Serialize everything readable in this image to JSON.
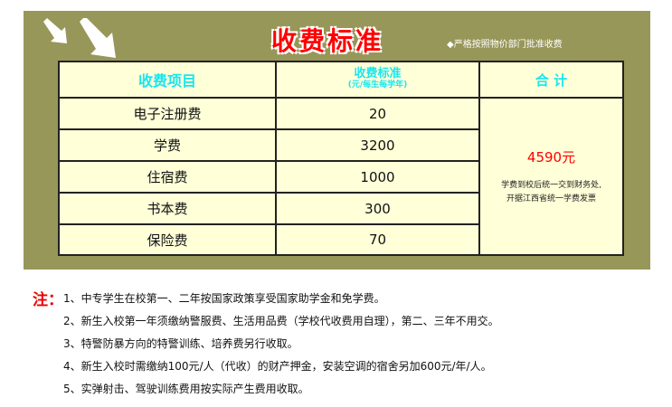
{
  "header": {
    "title": "收费标准",
    "note": "◆严格按照物价部门批准收费"
  },
  "table": {
    "headers": {
      "item": "收费项目",
      "standard": "收费标准",
      "standard_sub": "(元/每生每学年)",
      "total": "合 计"
    },
    "rows": [
      {
        "item": "电子注册费",
        "amount": "20"
      },
      {
        "item": "学费",
        "amount": "3200"
      },
      {
        "item": "住宿费",
        "amount": "1000"
      },
      {
        "item": "书本费",
        "amount": "300"
      },
      {
        "item": "保险费",
        "amount": "70"
      }
    ],
    "total": "4590元",
    "remark_1": "学费到校后统一交到财务处,",
    "remark_2": "开据江西省统一学费发票"
  },
  "notes": {
    "label": "注：",
    "items": [
      "1、中专学生在校第一、二年按国家政策享受国家助学金和免学费。",
      "2、新生入校第一年须缴纳警服费、生活用品费（学校代收费用自理），第二、三年不用交。",
      "3、特警防暴方向的特警训练、培养费另行收取。",
      "4、新生入校时需缴纳100元/人（代收）的财产押金，安装空调的宿舍另加600元/年/人。",
      "5、实弹射击、驾驶训练费用按实际产生费用收取。"
    ]
  },
  "colors": {
    "panel": "#98975a",
    "title": "#ff0000",
    "header_text": "#19e6f0",
    "cell_bg": "#ffffd8"
  }
}
